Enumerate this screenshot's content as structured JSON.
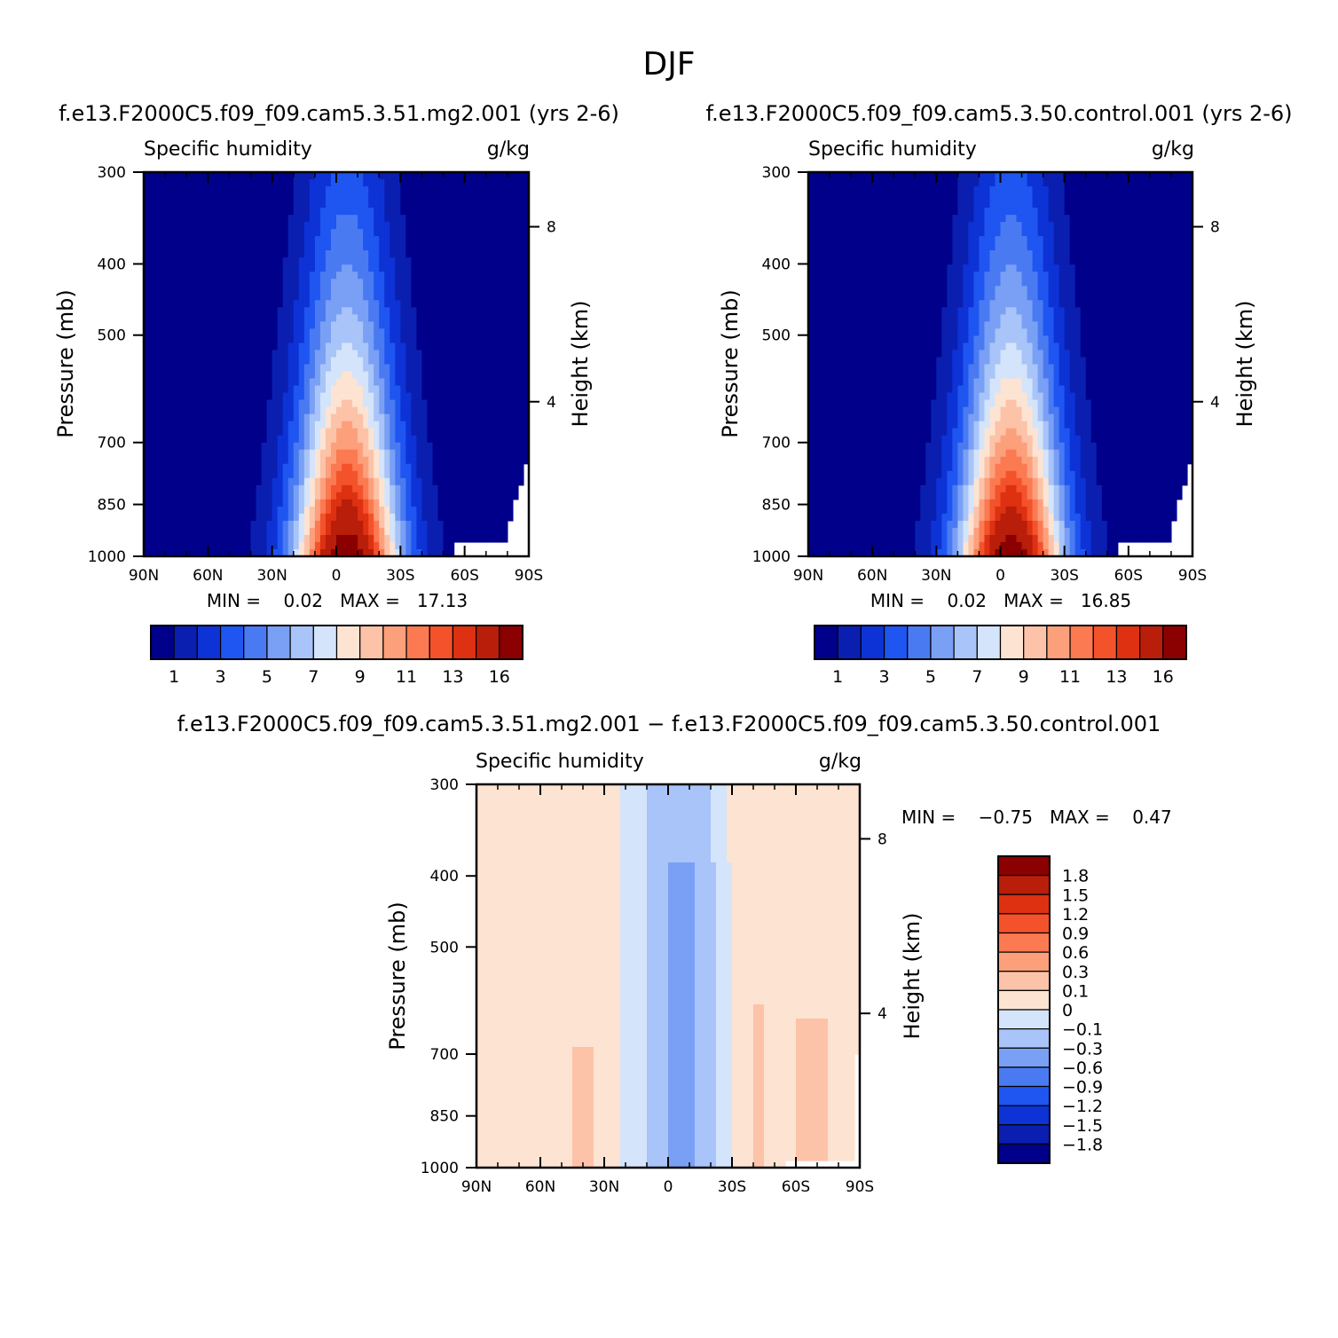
{
  "figure": {
    "title": "DJF"
  },
  "panel_top_left": {
    "header": "f.e13.F2000C5.f09_f09.cam5.3.51.mg2.001  (yrs 2-6)",
    "var_label": "Specific humidity",
    "units": "g/kg",
    "ylabel": "Pressure (mb)",
    "ylabel_right": "Height (km)",
    "min_max": "MIN =    0.02   MAX =   17.13"
  },
  "panel_top_right": {
    "header": "f.e13.F2000C5.f09_f09.cam5.3.50.control.001  (yrs 2-6)",
    "var_label": "Specific humidity",
    "units": "g/kg",
    "ylabel": "Pressure (mb)",
    "ylabel_right": "Height (km)",
    "min_max": "MIN =    0.02   MAX =   16.85"
  },
  "panel_bottom": {
    "header": "f.e13.F2000C5.f09_f09.cam5.3.51.mg2.001  −  f.e13.F2000C5.f09_f09.cam5.3.50.control.001",
    "var_label": "Specific humidity",
    "units": "g/kg",
    "ylabel": "Pressure (mb)",
    "ylabel_right": "Height (km)",
    "min_max": "MIN =    −0.75   MAX =    0.47"
  },
  "chart_data": [
    {
      "type": "heatmap",
      "name": "top-left",
      "x_ticks": [
        "90N",
        "60N",
        "30N",
        "0",
        "30S",
        "60S",
        "90S"
      ],
      "x_tick_values": [
        90,
        60,
        30,
        0,
        -30,
        -60,
        -90
      ],
      "y_ticks": [
        300,
        400,
        500,
        700,
        850,
        1000
      ],
      "y_range": [
        1000,
        300
      ],
      "y_scale": "log",
      "height_ticks_km": [
        8,
        4
      ],
      "min": 0.02,
      "max": 17.13,
      "colorbar_labels": [
        "1",
        "3",
        "5",
        "7",
        "9",
        "11",
        "13",
        "16"
      ],
      "contour_levels": [
        1,
        2,
        3,
        4,
        5,
        6,
        7,
        8,
        9,
        10,
        11,
        12,
        13,
        14,
        16
      ]
    },
    {
      "type": "heatmap",
      "name": "top-right",
      "x_ticks": [
        "90N",
        "60N",
        "30N",
        "0",
        "30S",
        "60S",
        "90S"
      ],
      "x_tick_values": [
        90,
        60,
        30,
        0,
        -30,
        -60,
        -90
      ],
      "y_ticks": [
        300,
        400,
        500,
        700,
        850,
        1000
      ],
      "y_range": [
        1000,
        300
      ],
      "y_scale": "log",
      "height_ticks_km": [
        8,
        4
      ],
      "min": 0.02,
      "max": 16.85,
      "colorbar_labels": [
        "1",
        "3",
        "5",
        "7",
        "9",
        "11",
        "13",
        "16"
      ],
      "contour_levels": [
        1,
        2,
        3,
        4,
        5,
        6,
        7,
        8,
        9,
        10,
        11,
        12,
        13,
        14,
        16
      ]
    },
    {
      "type": "heatmap",
      "name": "difference",
      "x_ticks": [
        "90N",
        "60N",
        "30N",
        "0",
        "30S",
        "60S",
        "90S"
      ],
      "x_tick_values": [
        90,
        60,
        30,
        0,
        -30,
        -60,
        -90
      ],
      "y_ticks": [
        300,
        400,
        500,
        700,
        850,
        1000
      ],
      "y_range": [
        1000,
        300
      ],
      "y_scale": "log",
      "height_ticks_km": [
        8,
        4
      ],
      "min": -0.75,
      "max": 0.47,
      "colorbar_labels": [
        "1.8",
        "1.5",
        "1.2",
        "0.9",
        "0.6",
        "0.3",
        "0.1",
        "0",
        "−0.1",
        "−0.3",
        "−0.6",
        "−0.9",
        "−1.2",
        "−1.5",
        "−1.8"
      ]
    }
  ],
  "colors": {
    "seq": [
      "#00008b",
      "#0a1fb0",
      "#0d33d6",
      "#1f55f0",
      "#4a7af2",
      "#7aa0f5",
      "#a8c4f8",
      "#d3e4fb",
      "#fde3d2",
      "#fcc3a8",
      "#fca07c",
      "#fb7a52",
      "#f4522b",
      "#dd3112",
      "#b81e0a",
      "#8b0000"
    ],
    "diff": [
      "#8b0000",
      "#b81e0a",
      "#dd3112",
      "#f4522b",
      "#fb7a52",
      "#fca07c",
      "#fcc3a8",
      "#fde3d2",
      "#d3e4fb",
      "#a8c4f8",
      "#7aa0f5",
      "#4a7af2",
      "#1f55f0",
      "#0d33d6",
      "#0a1fb0",
      "#00008b"
    ]
  }
}
